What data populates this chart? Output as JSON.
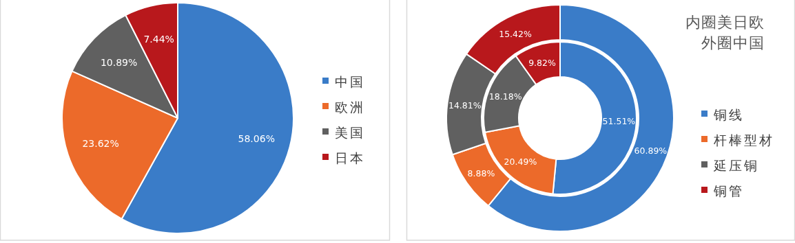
{
  "chart_data": [
    {
      "type": "pie",
      "categories": [
        "中国",
        "欧洲",
        "美国",
        "日本"
      ],
      "values": [
        58.06,
        23.62,
        10.89,
        7.44
      ],
      "colors": [
        "#3a7cc8",
        "#ec6a2a",
        "#606060",
        "#b8181c"
      ],
      "value_labels": [
        "58.06%",
        "23.62%",
        "10.89%",
        "7.44%"
      ],
      "legend": "right"
    },
    {
      "type": "donut",
      "categories": [
        "铜线",
        "杆棒型材",
        "延压铜",
        "铜管"
      ],
      "annotations": [
        "内圈美日欧",
        "外圈中国"
      ],
      "legend": "right",
      "series": [
        {
          "values": [
            51.51,
            20.49,
            18.18,
            9.82
          ],
          "colors": [
            "#3a7cc8",
            "#ec6a2a",
            "#606060",
            "#b8181c"
          ],
          "value_labels": [
            "51.51%",
            "20.49%",
            "18.18%",
            "9.82%"
          ]
        },
        {
          "values": [
            60.89,
            8.88,
            14.81,
            15.42
          ],
          "colors": [
            "#3a7cc8",
            "#ec6a2a",
            "#606060",
            "#b8181c"
          ],
          "value_labels": [
            "60.89%",
            "8.88%",
            "14.81%",
            "15.42%"
          ]
        }
      ]
    }
  ]
}
